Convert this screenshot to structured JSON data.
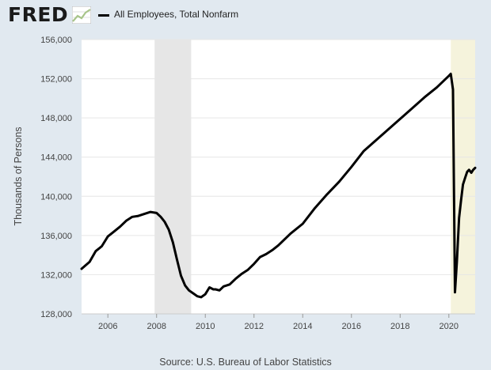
{
  "header": {
    "logo_text": "FRED",
    "legend_label": "All Employees, Total Nonfarm"
  },
  "source": "Source: U.S. Bureau of Labor Statistics",
  "colors": {
    "line": "#000000",
    "plot_background": "#ffffff",
    "page_background": "#e1e9f0",
    "recession_2008": "#e6e6e6",
    "recession_2020": "#f5f3dc",
    "logo_graph": "#a7c489"
  },
  "chart_data": {
    "type": "line",
    "title": "",
    "xlabel": "",
    "ylabel": "Thousands of Persons",
    "xlim": [
      2004.92,
      2021.08
    ],
    "ylim": [
      128000,
      156000
    ],
    "x_ticks": [
      2006,
      2008,
      2010,
      2012,
      2014,
      2016,
      2018,
      2020
    ],
    "x_tick_labels": [
      "2006",
      "2008",
      "2010",
      "2012",
      "2014",
      "2016",
      "2018",
      "2020"
    ],
    "y_ticks": [
      128000,
      132000,
      136000,
      140000,
      144000,
      148000,
      152000,
      156000
    ],
    "y_tick_labels": [
      "128,000",
      "132,000",
      "136,000",
      "140,000",
      "144,000",
      "148,000",
      "152,000",
      "156,000"
    ],
    "grid": "horizontal",
    "recessions": [
      [
        2007.92,
        2009.42
      ],
      [
        2020.08,
        2021.08
      ]
    ],
    "series": [
      {
        "name": "All Employees, Total Nonfarm",
        "x": [
          2004.92,
          2005.25,
          2005.5,
          2005.75,
          2006.0,
          2006.25,
          2006.5,
          2006.75,
          2007.0,
          2007.25,
          2007.5,
          2007.75,
          2008.0,
          2008.17,
          2008.33,
          2008.5,
          2008.67,
          2008.83,
          2009.0,
          2009.17,
          2009.33,
          2009.5,
          2009.67,
          2009.83,
          2010.0,
          2010.17,
          2010.33,
          2010.42,
          2010.58,
          2010.75,
          2011.0,
          2011.25,
          2011.5,
          2011.75,
          2012.0,
          2012.25,
          2012.5,
          2012.75,
          2013.0,
          2013.5,
          2014.0,
          2014.5,
          2015.0,
          2015.5,
          2016.0,
          2016.5,
          2017.0,
          2017.5,
          2018.0,
          2018.5,
          2019.0,
          2019.5,
          2020.0,
          2020.08,
          2020.17,
          2020.25,
          2020.33,
          2020.42,
          2020.5,
          2020.58,
          2020.67,
          2020.75,
          2020.83,
          2020.92,
          2021.0,
          2021.08
        ],
        "values": [
          132600,
          133300,
          134400,
          134900,
          135900,
          136400,
          136900,
          137500,
          137900,
          138000,
          138200,
          138400,
          138300,
          137900,
          137400,
          136600,
          135300,
          133600,
          131900,
          130900,
          130400,
          130100,
          129800,
          129700,
          130000,
          130700,
          130500,
          130500,
          130400,
          130800,
          131000,
          131600,
          132100,
          132500,
          133100,
          133800,
          134100,
          134500,
          135000,
          136200,
          137200,
          138800,
          140200,
          141500,
          143000,
          144600,
          145700,
          146800,
          147900,
          149000,
          150100,
          151100,
          152300,
          152500,
          150900,
          130200,
          133300,
          137800,
          139600,
          141200,
          141900,
          142500,
          142700,
          142400,
          142700,
          142900
        ]
      }
    ]
  }
}
